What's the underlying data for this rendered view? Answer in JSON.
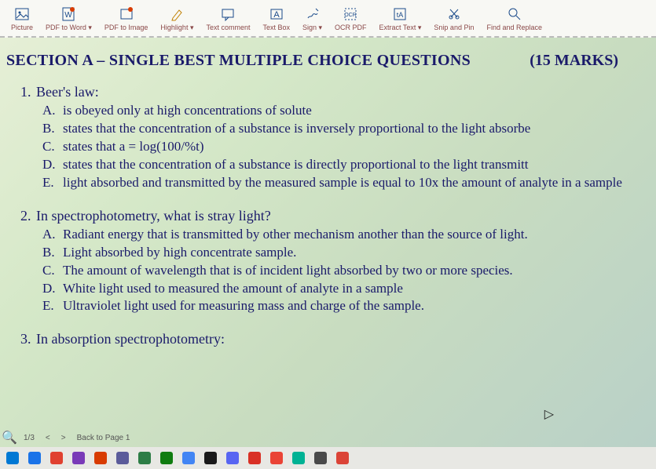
{
  "toolbar": {
    "items": [
      {
        "name": "picture",
        "label": "Picture"
      },
      {
        "name": "pdf-to-word",
        "label": "PDF to Word ▾"
      },
      {
        "name": "pdf-to-image",
        "label": "PDF to Image"
      },
      {
        "name": "highlight",
        "label": "Highlight ▾"
      },
      {
        "name": "text-comment",
        "label": "Text comment"
      },
      {
        "name": "text-box",
        "label": "Text Box"
      },
      {
        "name": "sign",
        "label": "Sign ▾"
      },
      {
        "name": "ocr-pdf",
        "label": "OCR PDF"
      },
      {
        "name": "extract-text",
        "label": "Extract Text ▾"
      },
      {
        "name": "snip-pin",
        "label": "Snip and Pin"
      },
      {
        "name": "find-replace",
        "label": "Find and Replace"
      }
    ]
  },
  "section": {
    "title": "SECTION A – SINGLE BEST MULTIPLE CHOICE QUESTIONS",
    "marks": "(15 MARKS)"
  },
  "questions": [
    {
      "num": "1.",
      "stem": "Beer's law:",
      "opts": [
        {
          "l": "A.",
          "t": "is obeyed only at high concentrations of solute"
        },
        {
          "l": "B.",
          "t": "states that the concentration of a substance is inversely proportional to the light absorbe"
        },
        {
          "l": "C.",
          "t": "states that a = log(100/%t)"
        },
        {
          "l": "D.",
          "t": "states that the concentration of a substance is directly proportional to the light transmitt"
        },
        {
          "l": "E.",
          "t": "light absorbed and transmitted by the measured sample is equal to 10x  the amount of analyte in a sample"
        }
      ]
    },
    {
      "num": "2.",
      "stem": "In spectrophotometry, what is stray light?",
      "opts": [
        {
          "l": "A.",
          "t": "Radiant energy that is transmitted by other mechanism another than the source of light."
        },
        {
          "l": "B.",
          "t": "Light absorbed by high concentrate sample."
        },
        {
          "l": "C.",
          "t": "The amount of wavelength that is of incident light absorbed by two or more species."
        },
        {
          "l": "D.",
          "t": "White light used to measured the amount of analyte in a sample"
        },
        {
          "l": "E.",
          "t": "Ultraviolet light used for measuring mass and charge of the sample."
        }
      ]
    },
    {
      "num": "3.",
      "stem": "In absorption spectrophotometry:",
      "opts": []
    }
  ],
  "footer": {
    "page": "1/3",
    "nav_prev": "<",
    "nav_next": ">",
    "back": "Back to Page 1"
  },
  "taskbar_colors": [
    "#0078d4",
    "#1a73e8",
    "#e04030",
    "#7a3ab8",
    "#d83b01",
    "#5b5b9a",
    "#2d7d46",
    "#107c10",
    "#4285f4",
    "#1a1a1a",
    "#5865f2",
    "#d93025",
    "#ea4335",
    "#00b294",
    "#4a4a4a",
    "#db4437"
  ]
}
